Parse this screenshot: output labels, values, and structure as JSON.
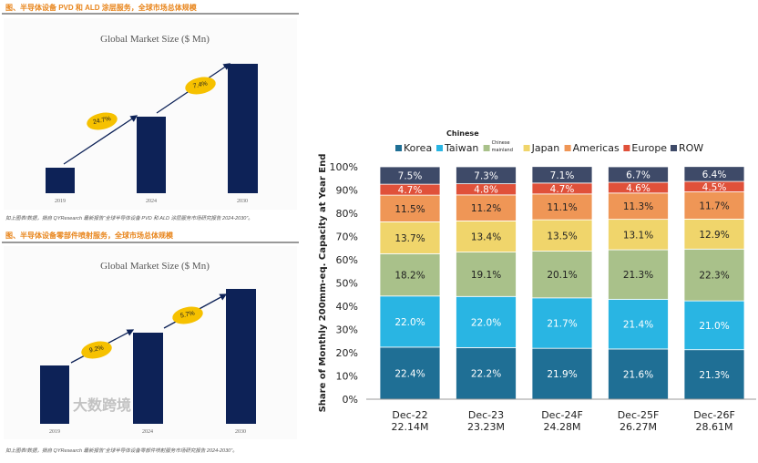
{
  "left": {
    "top": {
      "figure_title": "图、半导体设备 PVD 和 ALD 涂层服务，全球市场总体规模",
      "chart_title": "Global Market Size ($ Mn)",
      "years": [
        "2019",
        "2024",
        "2030"
      ],
      "growth_labels": [
        "24.7%",
        "7.4%"
      ],
      "source": "如上图表/数据，摘自 QYResearch 最新报告“全球半导体设备 PVD 和 ALD 涂层服务市场研究报告 2024-2030”。"
    },
    "bottom": {
      "figure_title": "图、半导体设备零部件喷射服务，全球市场总体规模",
      "chart_title": "Global Market Size ($ Mn)",
      "years": [
        "2019",
        "2024",
        "2030"
      ],
      "growth_labels": [
        "9.2%",
        "5.7%"
      ],
      "source": "如上图表/数据，摘自 QYResearch 最新报告“全球半导体设备零部件喷射服务市场研究报告 2024-2030”。",
      "watermark": "大数跨境"
    }
  },
  "chart_data": {
    "type": "bar",
    "stacked": true,
    "ylabel": "Share of Monthly 200mm-eq. Capacity at Year End",
    "yticks": [
      "0%",
      "10%",
      "20%",
      "30%",
      "40%",
      "50%",
      "60%",
      "70%",
      "80%",
      "90%",
      "100%"
    ],
    "ylim": [
      0,
      100
    ],
    "categories": [
      "Dec-22",
      "Dec-23",
      "Dec-24F",
      "Dec-25F",
      "Dec-26F"
    ],
    "category_sub": [
      "22.14M",
      "23.23M",
      "24.28M",
      "26.27M",
      "28.61M"
    ],
    "legend_header": "Chinese",
    "series": [
      {
        "name": "Korea",
        "color": "#1f6f95",
        "values": [
          22.4,
          22.2,
          21.9,
          21.6,
          21.3
        ]
      },
      {
        "name": "Taiwan",
        "color": "#29b5e3",
        "values": [
          22.0,
          22.0,
          21.7,
          21.4,
          21.0
        ]
      },
      {
        "name": "mainland",
        "legend_top": "Chinese",
        "color": "#a9c18a",
        "values": [
          18.2,
          19.1,
          20.1,
          21.3,
          22.3
        ]
      },
      {
        "name": "Japan",
        "color": "#f0d56b",
        "values": [
          13.7,
          13.4,
          13.5,
          13.1,
          12.9
        ]
      },
      {
        "name": "Americas",
        "color": "#ef9656",
        "values": [
          11.5,
          11.2,
          11.1,
          11.3,
          11.7
        ]
      },
      {
        "name": "Europe",
        "color": "#e0513a",
        "values": [
          4.7,
          4.8,
          4.7,
          4.6,
          4.5
        ]
      },
      {
        "name": "ROW",
        "color": "#3e4a68",
        "values": [
          7.5,
          7.3,
          7.1,
          6.7,
          6.4
        ]
      }
    ]
  }
}
